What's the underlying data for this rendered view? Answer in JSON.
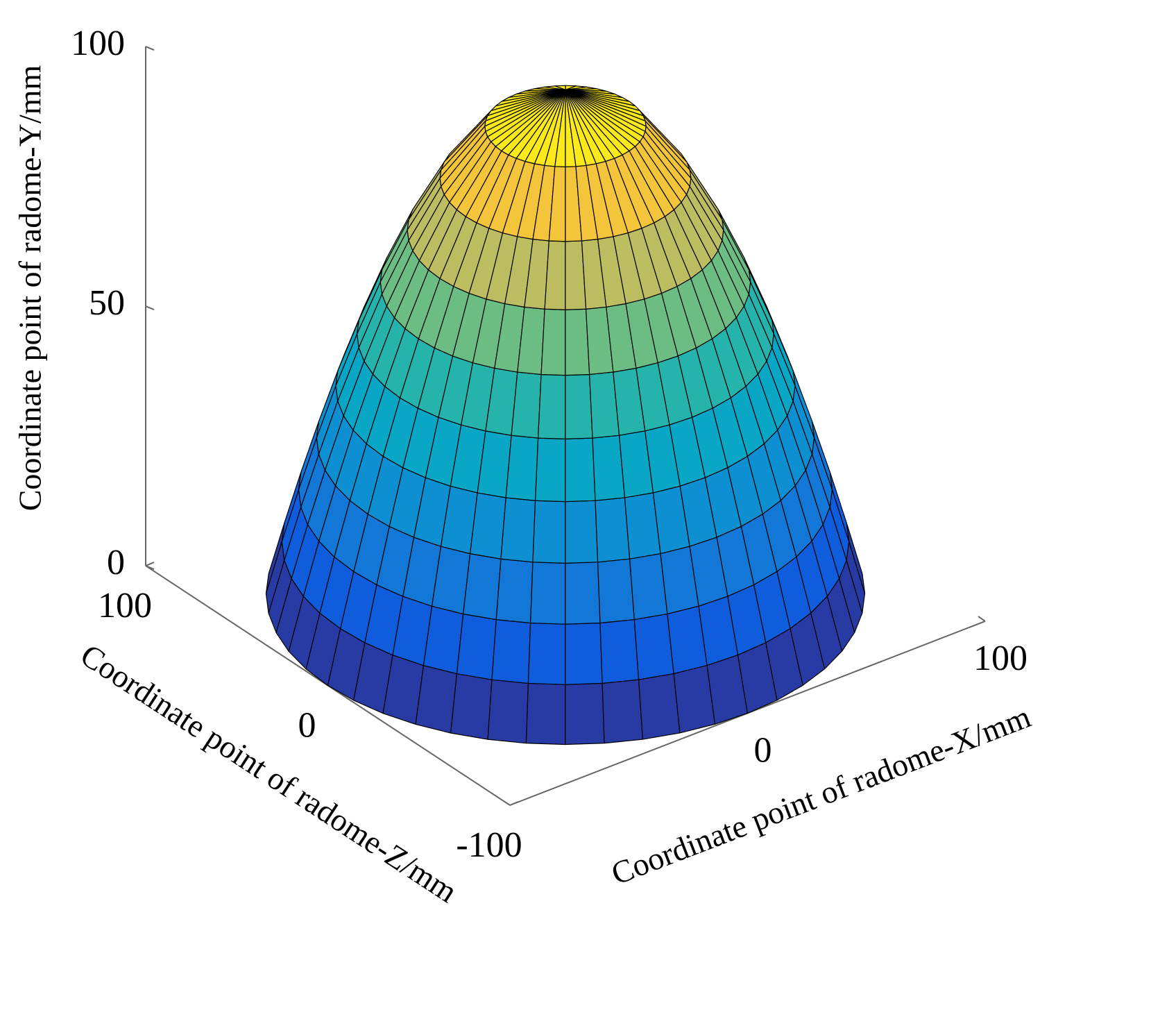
{
  "chart_data": {
    "type": "surface",
    "x_label": "Coordinate point of radome-X/mm",
    "y_label": "Coordinate point of radome-Y/mm",
    "z_label": "Coordinate point of radome-Z/mm",
    "xlim": [
      -100,
      100
    ],
    "ylim": [
      0,
      100
    ],
    "zlim": [
      -100,
      100
    ],
    "xticks": [
      0,
      100
    ],
    "yticks": [
      0,
      50,
      100
    ],
    "zticks": [
      -100,
      0,
      100
    ],
    "colormap": "parula",
    "mesh_color": "#000000",
    "surface": {
      "height": [
        0,
        10,
        20,
        30,
        40,
        50,
        60,
        70,
        80,
        90,
        97
      ],
      "radius": [
        100,
        94.7,
        89.1,
        83.1,
        76.7,
        69.6,
        61.8,
        52.8,
        41.9,
        26.9,
        0
      ]
    }
  }
}
